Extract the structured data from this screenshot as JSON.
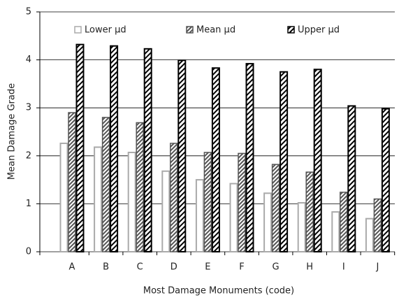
{
  "chart_data": {
    "type": "bar",
    "x_label": "Most Damage Monuments (code)",
    "y_label": "Mean Damage Grade",
    "categories": [
      "A",
      "B",
      "C",
      "D",
      "E",
      "F",
      "G",
      "H",
      "I",
      "J"
    ],
    "series": [
      {
        "name": "Lower μd",
        "color": "#aaaaaa",
        "values": [
          2.26,
          2.18,
          2.07,
          1.68,
          1.5,
          1.42,
          1.22,
          1.02,
          0.83,
          0.69
        ]
      },
      {
        "name": "Mean μd",
        "color": "#555555",
        "values": [
          2.9,
          2.8,
          2.69,
          2.26,
          2.07,
          2.05,
          1.82,
          1.66,
          1.24,
          1.1
        ]
      },
      {
        "name": "Upper μd",
        "color": "#000000",
        "values": [
          4.32,
          4.29,
          4.23,
          3.99,
          3.83,
          3.92,
          3.75,
          3.8,
          3.04,
          2.98
        ]
      }
    ],
    "ylim": [
      0,
      5
    ],
    "yticks": [
      0,
      1,
      2,
      3,
      4,
      5
    ],
    "grid": true,
    "legend": "top"
  }
}
